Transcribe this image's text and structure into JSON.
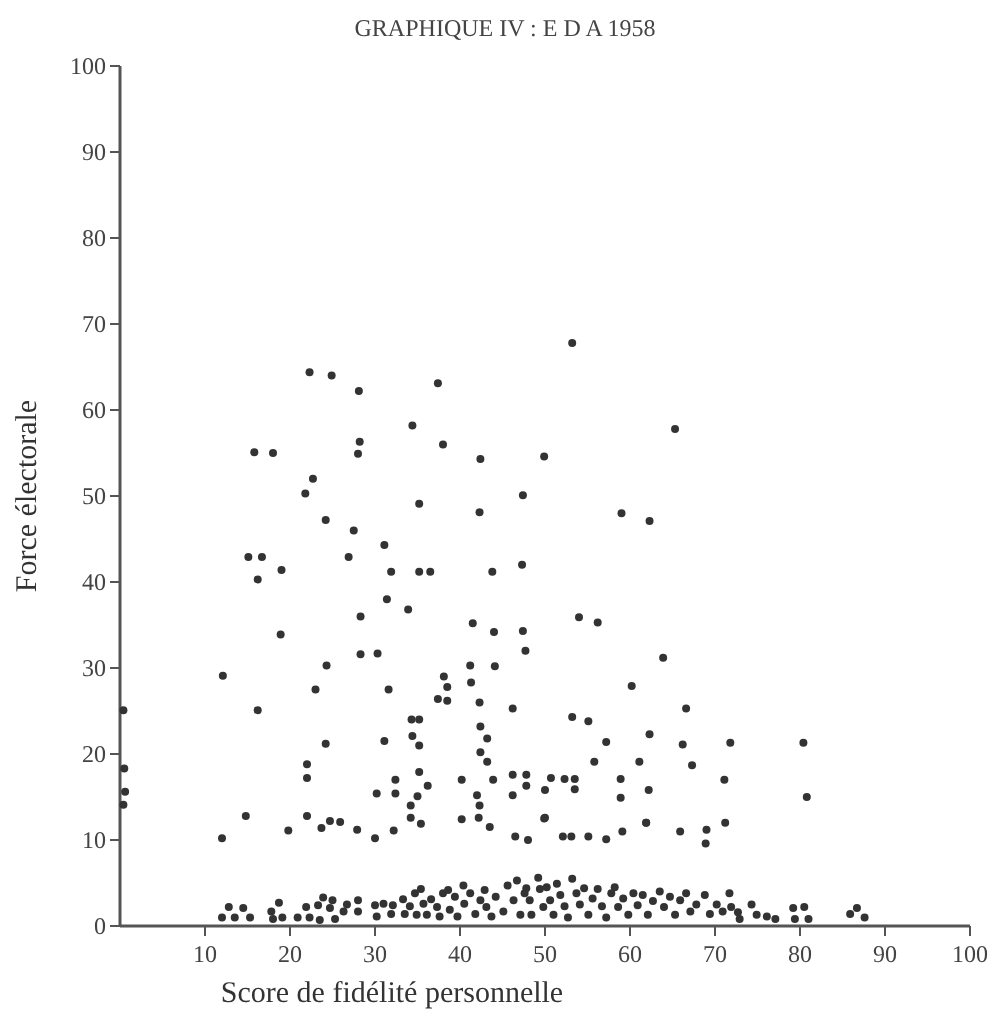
{
  "chart_data": {
    "type": "scatter",
    "title": "GRAPHIQUE IV : E D A    1958",
    "xlabel": "Score de fidélité personnelle",
    "ylabel": "Force électorale",
    "xlim": [
      0,
      100
    ],
    "ylim": [
      0,
      100
    ],
    "xticks": [
      10,
      20,
      30,
      40,
      50,
      60,
      70,
      80,
      90,
      100
    ],
    "yticks": [
      0,
      10,
      20,
      30,
      40,
      50,
      60,
      70,
      80,
      90,
      100
    ],
    "grid": false,
    "marker": "circle",
    "series": [
      {
        "color": "#333333",
        "x": [
          0.4,
          0.5,
          0.6,
          0.4,
          12.0,
          12.1,
          14.8,
          15.1,
          15.8,
          16.2,
          16.2,
          16.7,
          18.0,
          19.0,
          18.9,
          19.8,
          21.8,
          22.7,
          22.3,
          24.9,
          24.2,
          27.5,
          26.9,
          28.1,
          28.2,
          28.0,
          28.3,
          28.3,
          24.3,
          23.0,
          24.2,
          22.0,
          22.0,
          22.0,
          23.7,
          24.7,
          25.9,
          27.9,
          12.0,
          12.8,
          13.5,
          14.5,
          15.3,
          17.8,
          18.0,
          18.7,
          19.1,
          20.9,
          21.9,
          22.3,
          23.3,
          23.5,
          23.9,
          24.7,
          25.0,
          25.3,
          26.3,
          26.7,
          28.0,
          28.0,
          30.0,
          30.2,
          31.0,
          31.9,
          32.1,
          33.3,
          33.5,
          34.1,
          34.7,
          34.9,
          35.4,
          35.7,
          36.1,
          36.6,
          37.3,
          37.6,
          38.0,
          38.6,
          38.8,
          39.4,
          39.7,
          40.4,
          40.5,
          41.2,
          41.8,
          42.4,
          42.9,
          43.1,
          43.7,
          44.2,
          45.1,
          45.6,
          46.3,
          46.7,
          47.1,
          47.6,
          46.5,
          48.0,
          49.9,
          52.1,
          53.1,
          55.1,
          57.2,
          59.1,
          61.9,
          65.9,
          69.0,
          68.9,
          71.2,
          47.8,
          48.2,
          48.4,
          49.2,
          49.4,
          49.8,
          50.2,
          50.6,
          51.0,
          51.4,
          51.8,
          52.3,
          52.7,
          53.2,
          53.7,
          54.1,
          54.6,
          55.1,
          55.6,
          56.2,
          56.7,
          57.2,
          57.8,
          58.2,
          58.6,
          59.2,
          59.8,
          60.4,
          60.9,
          61.5,
          62.1,
          62.7,
          63.5,
          64.0,
          64.7,
          65.3,
          65.9,
          66.6,
          67.1,
          67.8,
          68.8,
          69.4,
          70.2,
          70.9,
          71.7,
          71.9,
          72.7,
          72.9,
          74.3,
          74.9,
          76.1,
          77.1,
          79.2,
          79.4,
          80.5,
          81.0,
          85.9,
          86.7,
          87.6,
          37.4,
          53.2,
          34.4,
          38.0,
          42.4,
          49.9,
          35.2,
          42.3,
          47.4,
          59.0,
          62.3,
          31.1,
          31.9,
          35.2,
          36.5,
          43.8,
          47.3,
          31.4,
          33.9,
          30.3,
          41.5,
          44.0,
          47.4,
          47.7,
          54.0,
          56.2,
          63.9,
          31.6,
          38.1,
          38.5,
          37.4,
          38.5,
          41.2,
          41.3,
          44.1,
          42.3,
          46.2,
          60.2,
          53.2,
          55.1,
          34.3,
          35.2,
          31.1,
          34.4,
          35.2,
          42.4,
          43.2,
          42.4,
          43.2,
          57.2,
          55.8,
          62.3,
          61.1,
          32.4,
          30.2,
          32.4,
          35.2,
          36.2,
          35.0,
          34.2,
          34.2,
          35.4,
          40.2,
          42.0,
          42.3,
          42.2,
          43.5,
          43.9,
          46.2,
          46.2,
          47.8,
          47.8,
          50.7,
          52.3,
          53.5,
          53.5,
          50.0,
          58.9,
          58.9,
          62.2,
          61.9,
          40.2,
          50.0,
          30.0,
          32.2,
          65.3,
          66.6,
          66.2,
          71.8,
          80.4,
          67.3,
          71.1,
          80.8
        ],
        "values": [
          25.1,
          18.3,
          15.6,
          14.1,
          10.2,
          29.1,
          12.8,
          42.9,
          55.1,
          40.3,
          25.1,
          42.9,
          55.0,
          41.4,
          33.9,
          11.1,
          50.3,
          52.0,
          64.4,
          64.0,
          47.2,
          46.0,
          42.9,
          62.2,
          56.3,
          54.9,
          36.0,
          31.6,
          30.3,
          27.5,
          21.2,
          18.8,
          17.2,
          12.8,
          11.4,
          12.2,
          12.1,
          11.2,
          1.0,
          2.2,
          1.0,
          2.1,
          1.0,
          1.7,
          0.8,
          2.7,
          1.0,
          1.0,
          2.2,
          1.0,
          2.4,
          0.7,
          3.3,
          2.1,
          3.0,
          0.8,
          1.7,
          2.5,
          3.0,
          1.7,
          2.4,
          1.1,
          2.6,
          1.4,
          2.4,
          3.1,
          1.4,
          2.3,
          3.8,
          1.3,
          4.3,
          2.6,
          1.3,
          3.1,
          2.2,
          1.1,
          3.8,
          4.2,
          1.9,
          3.4,
          1.1,
          4.7,
          2.6,
          3.8,
          1.4,
          3.0,
          4.2,
          2.2,
          1.1,
          3.4,
          1.7,
          4.7,
          3.0,
          5.3,
          1.3,
          3.8,
          10.4,
          10.0,
          12.5,
          10.4,
          10.4,
          10.4,
          10.1,
          11.0,
          12.0,
          11.0,
          11.2,
          9.6,
          12.0,
          4.4,
          3.0,
          1.3,
          5.6,
          4.3,
          2.2,
          4.5,
          3.0,
          1.3,
          4.9,
          3.6,
          2.3,
          1.0,
          5.5,
          3.8,
          2.5,
          4.4,
          1.3,
          3.2,
          4.3,
          2.3,
          1.0,
          3.8,
          4.5,
          2.2,
          3.2,
          1.3,
          3.8,
          2.4,
          3.6,
          1.3,
          2.9,
          4.0,
          2.2,
          3.4,
          1.3,
          3.0,
          3.8,
          1.7,
          2.5,
          3.6,
          1.4,
          2.5,
          1.7,
          3.8,
          2.2,
          1.6,
          0.8,
          2.5,
          1.3,
          1.1,
          0.8,
          2.1,
          0.8,
          2.2,
          0.8,
          1.4,
          2.1,
          1.0,
          63.1,
          67.8,
          58.2,
          56.0,
          54.3,
          54.6,
          49.1,
          48.1,
          50.1,
          48.0,
          47.1,
          44.3,
          41.2,
          41.2,
          41.2,
          41.2,
          42.0,
          38.0,
          36.8,
          31.7,
          35.2,
          34.2,
          34.3,
          32.0,
          35.9,
          35.3,
          31.2,
          27.5,
          29.0,
          27.8,
          26.4,
          26.2,
          30.3,
          28.3,
          30.2,
          26.0,
          25.3,
          27.9,
          24.3,
          23.8,
          24.0,
          24.0,
          21.5,
          22.1,
          21.0,
          23.2,
          21.8,
          20.2,
          19.1,
          21.4,
          19.1,
          22.3,
          19.1,
          17.0,
          15.4,
          15.4,
          17.9,
          16.3,
          15.1,
          14.0,
          12.6,
          11.9,
          17.0,
          15.2,
          14.0,
          12.6,
          11.5,
          17.0,
          17.6,
          15.2,
          17.6,
          16.3,
          17.2,
          17.1,
          17.1,
          15.9,
          15.8,
          17.1,
          14.9,
          15.8,
          12.0,
          12.4,
          12.6,
          10.2,
          11.1,
          57.8,
          25.3,
          21.1,
          21.3,
          21.3,
          18.7,
          17.0,
          15.0
        ]
      }
    ]
  }
}
